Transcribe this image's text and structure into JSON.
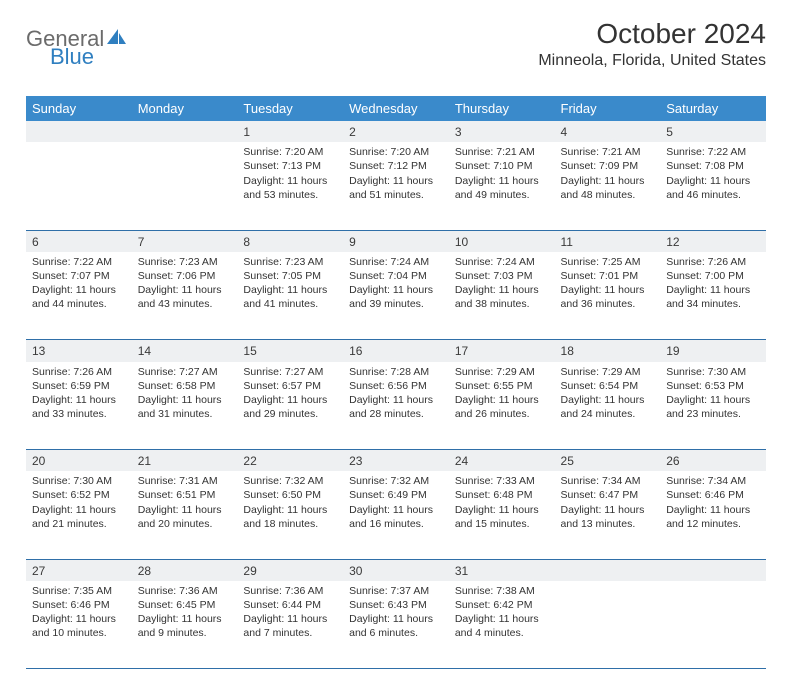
{
  "brand": {
    "word1": "General",
    "word2": "Blue",
    "color": "#2f7fc0"
  },
  "title": "October 2024",
  "location": "Minneola, Florida, United States",
  "header_bg": "#3a8acb",
  "header_fg": "#ffffff",
  "daynum_bg": "#eef0f2",
  "rule_color": "#2f6fa8",
  "text_color": "#333333",
  "weekdays": [
    "Sunday",
    "Monday",
    "Tuesday",
    "Wednesday",
    "Thursday",
    "Friday",
    "Saturday"
  ],
  "weeks": [
    [
      null,
      null,
      {
        "n": "1",
        "sr": "7:20 AM",
        "ss": "7:13 PM",
        "dl": "11 hours and 53 minutes."
      },
      {
        "n": "2",
        "sr": "7:20 AM",
        "ss": "7:12 PM",
        "dl": "11 hours and 51 minutes."
      },
      {
        "n": "3",
        "sr": "7:21 AM",
        "ss": "7:10 PM",
        "dl": "11 hours and 49 minutes."
      },
      {
        "n": "4",
        "sr": "7:21 AM",
        "ss": "7:09 PM",
        "dl": "11 hours and 48 minutes."
      },
      {
        "n": "5",
        "sr": "7:22 AM",
        "ss": "7:08 PM",
        "dl": "11 hours and 46 minutes."
      }
    ],
    [
      {
        "n": "6",
        "sr": "7:22 AM",
        "ss": "7:07 PM",
        "dl": "11 hours and 44 minutes."
      },
      {
        "n": "7",
        "sr": "7:23 AM",
        "ss": "7:06 PM",
        "dl": "11 hours and 43 minutes."
      },
      {
        "n": "8",
        "sr": "7:23 AM",
        "ss": "7:05 PM",
        "dl": "11 hours and 41 minutes."
      },
      {
        "n": "9",
        "sr": "7:24 AM",
        "ss": "7:04 PM",
        "dl": "11 hours and 39 minutes."
      },
      {
        "n": "10",
        "sr": "7:24 AM",
        "ss": "7:03 PM",
        "dl": "11 hours and 38 minutes."
      },
      {
        "n": "11",
        "sr": "7:25 AM",
        "ss": "7:01 PM",
        "dl": "11 hours and 36 minutes."
      },
      {
        "n": "12",
        "sr": "7:26 AM",
        "ss": "7:00 PM",
        "dl": "11 hours and 34 minutes."
      }
    ],
    [
      {
        "n": "13",
        "sr": "7:26 AM",
        "ss": "6:59 PM",
        "dl": "11 hours and 33 minutes."
      },
      {
        "n": "14",
        "sr": "7:27 AM",
        "ss": "6:58 PM",
        "dl": "11 hours and 31 minutes."
      },
      {
        "n": "15",
        "sr": "7:27 AM",
        "ss": "6:57 PM",
        "dl": "11 hours and 29 minutes."
      },
      {
        "n": "16",
        "sr": "7:28 AM",
        "ss": "6:56 PM",
        "dl": "11 hours and 28 minutes."
      },
      {
        "n": "17",
        "sr": "7:29 AM",
        "ss": "6:55 PM",
        "dl": "11 hours and 26 minutes."
      },
      {
        "n": "18",
        "sr": "7:29 AM",
        "ss": "6:54 PM",
        "dl": "11 hours and 24 minutes."
      },
      {
        "n": "19",
        "sr": "7:30 AM",
        "ss": "6:53 PM",
        "dl": "11 hours and 23 minutes."
      }
    ],
    [
      {
        "n": "20",
        "sr": "7:30 AM",
        "ss": "6:52 PM",
        "dl": "11 hours and 21 minutes."
      },
      {
        "n": "21",
        "sr": "7:31 AM",
        "ss": "6:51 PM",
        "dl": "11 hours and 20 minutes."
      },
      {
        "n": "22",
        "sr": "7:32 AM",
        "ss": "6:50 PM",
        "dl": "11 hours and 18 minutes."
      },
      {
        "n": "23",
        "sr": "7:32 AM",
        "ss": "6:49 PM",
        "dl": "11 hours and 16 minutes."
      },
      {
        "n": "24",
        "sr": "7:33 AM",
        "ss": "6:48 PM",
        "dl": "11 hours and 15 minutes."
      },
      {
        "n": "25",
        "sr": "7:34 AM",
        "ss": "6:47 PM",
        "dl": "11 hours and 13 minutes."
      },
      {
        "n": "26",
        "sr": "7:34 AM",
        "ss": "6:46 PM",
        "dl": "11 hours and 12 minutes."
      }
    ],
    [
      {
        "n": "27",
        "sr": "7:35 AM",
        "ss": "6:46 PM",
        "dl": "11 hours and 10 minutes."
      },
      {
        "n": "28",
        "sr": "7:36 AM",
        "ss": "6:45 PM",
        "dl": "11 hours and 9 minutes."
      },
      {
        "n": "29",
        "sr": "7:36 AM",
        "ss": "6:44 PM",
        "dl": "11 hours and 7 minutes."
      },
      {
        "n": "30",
        "sr": "7:37 AM",
        "ss": "6:43 PM",
        "dl": "11 hours and 6 minutes."
      },
      {
        "n": "31",
        "sr": "7:38 AM",
        "ss": "6:42 PM",
        "dl": "11 hours and 4 minutes."
      },
      null,
      null
    ]
  ],
  "labels": {
    "sunrise": "Sunrise: ",
    "sunset": "Sunset: ",
    "daylight": "Daylight: "
  }
}
